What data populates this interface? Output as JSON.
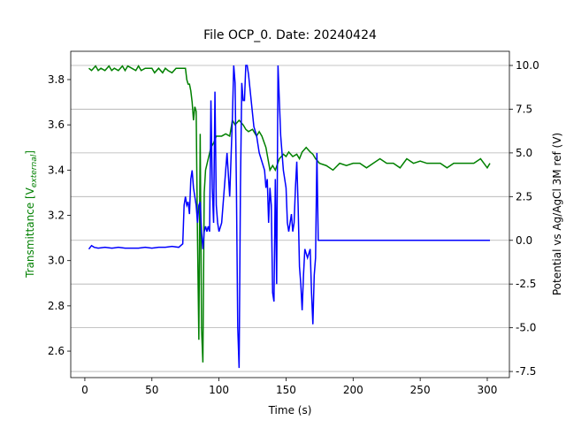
{
  "chart_data": {
    "type": "line",
    "title": "File OCP_0. Date: 20240424",
    "xlabel": "Time (s)",
    "ylabel": {
      "text": "Transmittance [V",
      "sub": "external",
      "end": "]"
    },
    "y2label": "Potential vs Ag/AgCl 3M ref (V)",
    "xlim": [
      -10.5,
      316.5
    ],
    "xticks": [
      0,
      50,
      100,
      150,
      200,
      250,
      300
    ],
    "ylim": [
      2.483,
      3.925
    ],
    "yticks": [
      2.6,
      2.8,
      {
        "value": 3,
        "label": "3.0"
      },
      3.2,
      3.4,
      3.6,
      3.8
    ],
    "y2lim": [
      -7.85,
      10.81
    ],
    "y2ticks": [
      -7.5,
      {
        "value": -5,
        "label": "-5.0"
      },
      -2.5,
      {
        "value": 0,
        "label": "0.0"
      },
      2.5,
      {
        "value": 5,
        "label": "5.0"
      },
      7.5,
      {
        "value": 10,
        "label": "10.0"
      }
    ],
    "grid": "y2",
    "ylabel_color": "#008000",
    "y2label_color": "#0000ff",
    "series": [
      {
        "color": "#008000",
        "axis": "y",
        "x": [
          3,
          5,
          8,
          10,
          12,
          15,
          18,
          20,
          22,
          25,
          28,
          30,
          32,
          35,
          38,
          40,
          42,
          45,
          48,
          50,
          52,
          55,
          58,
          60,
          62,
          65,
          68,
          70,
          72,
          74,
          75,
          76,
          77,
          78,
          79,
          80,
          81,
          82,
          83,
          84,
          85,
          86,
          87,
          88,
          89,
          90,
          92,
          94,
          96,
          98,
          100,
          102,
          105,
          108,
          110,
          112,
          115,
          118,
          120,
          122,
          125,
          128,
          130,
          132,
          135,
          138,
          140,
          142,
          145,
          148,
          150,
          152,
          155,
          158,
          160,
          162,
          165,
          168,
          170,
          172,
          175,
          180,
          185,
          190,
          195,
          200,
          205,
          210,
          215,
          220,
          225,
          230,
          235,
          240,
          245,
          250,
          255,
          260,
          265,
          270,
          275,
          280,
          285,
          290,
          295,
          300,
          302
        ],
        "values": [
          3.85,
          3.84,
          3.86,
          3.84,
          3.85,
          3.84,
          3.86,
          3.84,
          3.85,
          3.84,
          3.86,
          3.84,
          3.86,
          3.85,
          3.84,
          3.86,
          3.84,
          3.85,
          3.85,
          3.85,
          3.83,
          3.85,
          3.83,
          3.85,
          3.84,
          3.83,
          3.85,
          3.85,
          3.85,
          3.85,
          3.85,
          3.8,
          3.78,
          3.78,
          3.75,
          3.7,
          3.62,
          3.68,
          3.66,
          3.1,
          2.65,
          3.56,
          2.7,
          2.55,
          3.3,
          3.4,
          3.45,
          3.5,
          3.52,
          3.55,
          3.55,
          3.55,
          3.56,
          3.55,
          3.62,
          3.6,
          3.62,
          3.6,
          3.58,
          3.57,
          3.58,
          3.55,
          3.57,
          3.55,
          3.5,
          3.4,
          3.42,
          3.4,
          3.45,
          3.47,
          3.46,
          3.48,
          3.46,
          3.47,
          3.45,
          3.48,
          3.5,
          3.48,
          3.47,
          3.45,
          3.43,
          3.42,
          3.4,
          3.43,
          3.42,
          3.43,
          3.43,
          3.41,
          3.43,
          3.45,
          3.43,
          3.43,
          3.41,
          3.45,
          3.43,
          3.44,
          3.43,
          3.43,
          3.43,
          3.41,
          3.43,
          3.43,
          3.43,
          3.43,
          3.45,
          3.41,
          3.43
        ]
      },
      {
        "color": "#0000ff",
        "axis": "y2",
        "x": [
          3,
          5,
          7,
          10,
          15,
          20,
          25,
          30,
          35,
          40,
          45,
          50,
          55,
          60,
          65,
          70,
          73,
          74,
          75,
          76,
          77,
          78,
          79,
          80,
          81,
          82,
          83,
          84,
          85,
          86,
          87,
          88,
          89,
          90,
          91,
          92,
          93,
          94,
          95,
          96,
          97,
          98,
          99,
          100,
          102,
          104,
          106,
          108,
          110,
          111,
          112,
          113,
          114,
          115,
          116,
          117,
          118,
          119,
          120,
          121,
          122,
          124,
          126,
          128,
          130,
          132,
          134,
          135,
          136,
          137,
          138,
          139,
          140,
          141,
          142,
          143,
          144,
          145,
          146,
          148,
          150,
          151,
          152,
          154,
          155,
          156,
          157,
          158,
          159,
          160,
          161,
          162,
          163,
          164,
          166,
          168,
          169,
          170,
          171,
          172,
          173,
          174,
          175,
          200,
          250,
          302
        ],
        "values": [
          -0.5,
          -0.3,
          -0.4,
          -0.45,
          -0.4,
          -0.45,
          -0.4,
          -0.45,
          -0.45,
          -0.45,
          -0.4,
          -0.45,
          -0.4,
          -0.4,
          -0.35,
          -0.4,
          -0.2,
          2.0,
          2.5,
          2.0,
          2.2,
          1.5,
          3.5,
          4.0,
          3.0,
          2.5,
          2.0,
          1.0,
          2.0,
          2.2,
          0.5,
          -0.5,
          0.5,
          0.8,
          0.5,
          0.8,
          0.5,
          8.0,
          3.0,
          1.0,
          8.5,
          2.0,
          1.0,
          0.5,
          1.0,
          3.0,
          5.0,
          2.5,
          7.0,
          10.0,
          9.0,
          3.0,
          -5.0,
          -7.3,
          3.0,
          9.0,
          8.0,
          8.0,
          10.0,
          10.0,
          9.5,
          8.0,
          6.5,
          6.0,
          5.0,
          4.5,
          4.0,
          3.0,
          3.5,
          1.0,
          3.0,
          2.0,
          -3.0,
          -3.5,
          3.5,
          -2.5,
          10.0,
          8.0,
          6.0,
          4.0,
          3.0,
          1.0,
          0.5,
          1.5,
          0.5,
          1.0,
          3.0,
          4.5,
          2.0,
          -1.5,
          -2.5,
          -4.0,
          -2.0,
          -0.5,
          -1.0,
          -0.5,
          -3.0,
          -4.8,
          -2.0,
          -1.0,
          5.0,
          0.0,
          0.0,
          0.0,
          0.0,
          0.0
        ]
      }
    ]
  }
}
